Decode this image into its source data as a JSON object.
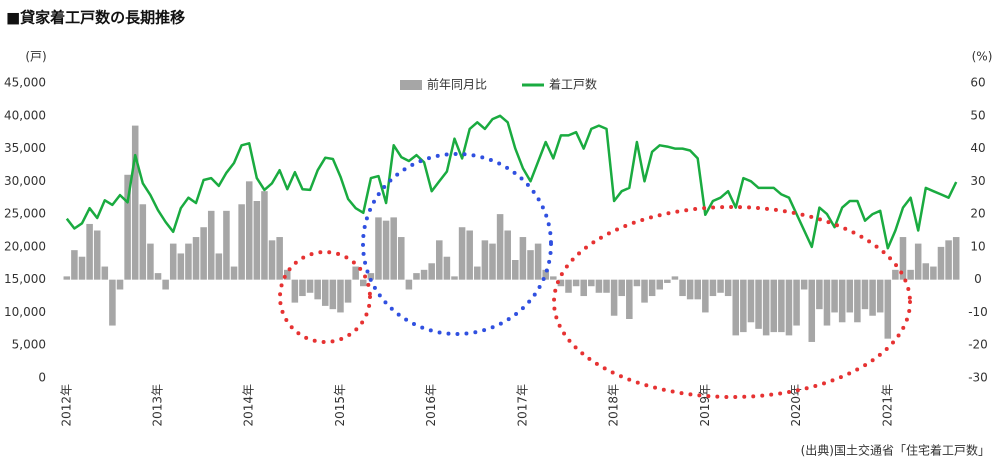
{
  "chart_data": {
    "type": "bar_line",
    "title": "■貸家着工戸数の長期推移",
    "y_axis_label": "(戸)",
    "y2_axis_label": "(%)",
    "source": "(出典)国土交通省「住宅着工戸数」",
    "legend": "top",
    "categories": [
      "2012年",
      null,
      null,
      null,
      null,
      null,
      null,
      null,
      null,
      null,
      null,
      null,
      "2013年",
      null,
      null,
      null,
      null,
      null,
      null,
      null,
      null,
      null,
      null,
      null,
      "2014年",
      null,
      null,
      null,
      null,
      null,
      null,
      null,
      null,
      null,
      null,
      null,
      "2015年",
      null,
      null,
      null,
      null,
      null,
      null,
      null,
      null,
      null,
      null,
      null,
      "2016年",
      null,
      null,
      null,
      null,
      null,
      null,
      null,
      null,
      null,
      null,
      null,
      "2017年",
      null,
      null,
      null,
      null,
      null,
      null,
      null,
      null,
      null,
      null,
      null,
      "2018年",
      null,
      null,
      null,
      null,
      null,
      null,
      null,
      null,
      null,
      null,
      null,
      "2019年",
      null,
      null,
      null,
      null,
      null,
      null,
      null,
      null,
      null,
      null,
      null,
      "2020年",
      null,
      null,
      null,
      null,
      null,
      null,
      null,
      null,
      null,
      null,
      null,
      "2021年",
      null,
      null,
      null,
      null,
      null,
      null,
      null,
      null,
      null
    ],
    "series": [
      {
        "name": "前年同月比",
        "type": "bar",
        "axis": "y2",
        "color": "#a6a6a6",
        "values": [
          1,
          9,
          7,
          17,
          15,
          4,
          -14,
          -3,
          32,
          47,
          23,
          11,
          2,
          -3,
          11,
          8,
          11,
          13,
          16,
          21,
          8,
          21,
          4,
          23,
          30,
          24,
          27,
          12,
          13,
          3,
          -7,
          -5,
          -4,
          -6,
          -8,
          -9,
          -10,
          -7,
          4,
          -2,
          2,
          19,
          18,
          19,
          13,
          -3,
          2,
          3,
          5,
          12,
          7,
          1,
          16,
          15,
          4,
          12,
          11,
          20,
          15,
          6,
          13,
          9,
          11,
          3,
          1,
          -2,
          -4,
          -2,
          -5,
          -2,
          -4,
          -4,
          -11,
          -5,
          -12,
          -2,
          -7,
          -5,
          -3,
          -1,
          1,
          -5,
          -6,
          -6,
          -10,
          -5,
          -4,
          -5,
          -17,
          -16,
          -13,
          -15,
          -17,
          -16,
          -16,
          -17,
          -14,
          -3,
          -19,
          -9,
          -14,
          -10,
          -13,
          -10,
          -13,
          -9,
          -11,
          -10,
          -18,
          3,
          13,
          3,
          11,
          5,
          4,
          10,
          12,
          13
        ]
      },
      {
        "name": "着工戸数",
        "type": "line",
        "color": "#1aab40",
        "values": [
          24300,
          22800,
          23600,
          25900,
          24400,
          27100,
          26400,
          27900,
          26800,
          34000,
          29700,
          27900,
          25600,
          23800,
          22300,
          25900,
          27500,
          26700,
          30200,
          30500,
          29300,
          31300,
          32800,
          35500,
          35800,
          30500,
          28700,
          29700,
          31700,
          28800,
          31400,
          28800,
          28700,
          31700,
          33600,
          33400,
          30700,
          27300,
          25900,
          25200,
          30500,
          30800,
          26700,
          35500,
          33700,
          33100,
          34000,
          32900,
          28500,
          30000,
          31500,
          36500,
          33500,
          38000,
          39000,
          38000,
          39500,
          40000,
          39000,
          35000,
          32000,
          30000,
          33000,
          36000,
          33500,
          37000,
          37000,
          37500,
          35000,
          38000,
          38500,
          38000,
          27000,
          28500,
          29000,
          36000,
          30000,
          34500,
          35500,
          35300,
          35000,
          35000,
          34700,
          33500,
          24900,
          27000,
          27500,
          28500,
          26000,
          30500,
          30000,
          29000,
          29000,
          29000,
          28000,
          27500,
          25000,
          22500,
          20000,
          26000,
          25000,
          23000,
          26000,
          27000,
          27000,
          24000,
          25000,
          25500,
          19800,
          22500,
          26000,
          27500,
          22500,
          29000,
          28500,
          28000,
          27500,
          29900
        ]
      }
    ],
    "ylim": [
      0,
      45000
    ],
    "yticks": [
      {
        "value": 0,
        "label": "0"
      },
      {
        "value": 5000,
        "label": "5,000"
      },
      {
        "value": 10000,
        "label": "10,000"
      },
      {
        "value": 15000,
        "label": "15,000"
      },
      {
        "value": 20000,
        "label": "20,000"
      },
      {
        "value": 25000,
        "label": "25,000"
      },
      {
        "value": 30000,
        "label": "30,000"
      },
      {
        "value": 35000,
        "label": "35,000"
      },
      {
        "value": 40000,
        "label": "40,000"
      },
      {
        "value": 45000,
        "label": "45,000"
      }
    ],
    "y2lim": [
      -30,
      60
    ],
    "y2ticks": [
      -30,
      -20,
      -10,
      0,
      10,
      20,
      30,
      40,
      50,
      60
    ]
  }
}
